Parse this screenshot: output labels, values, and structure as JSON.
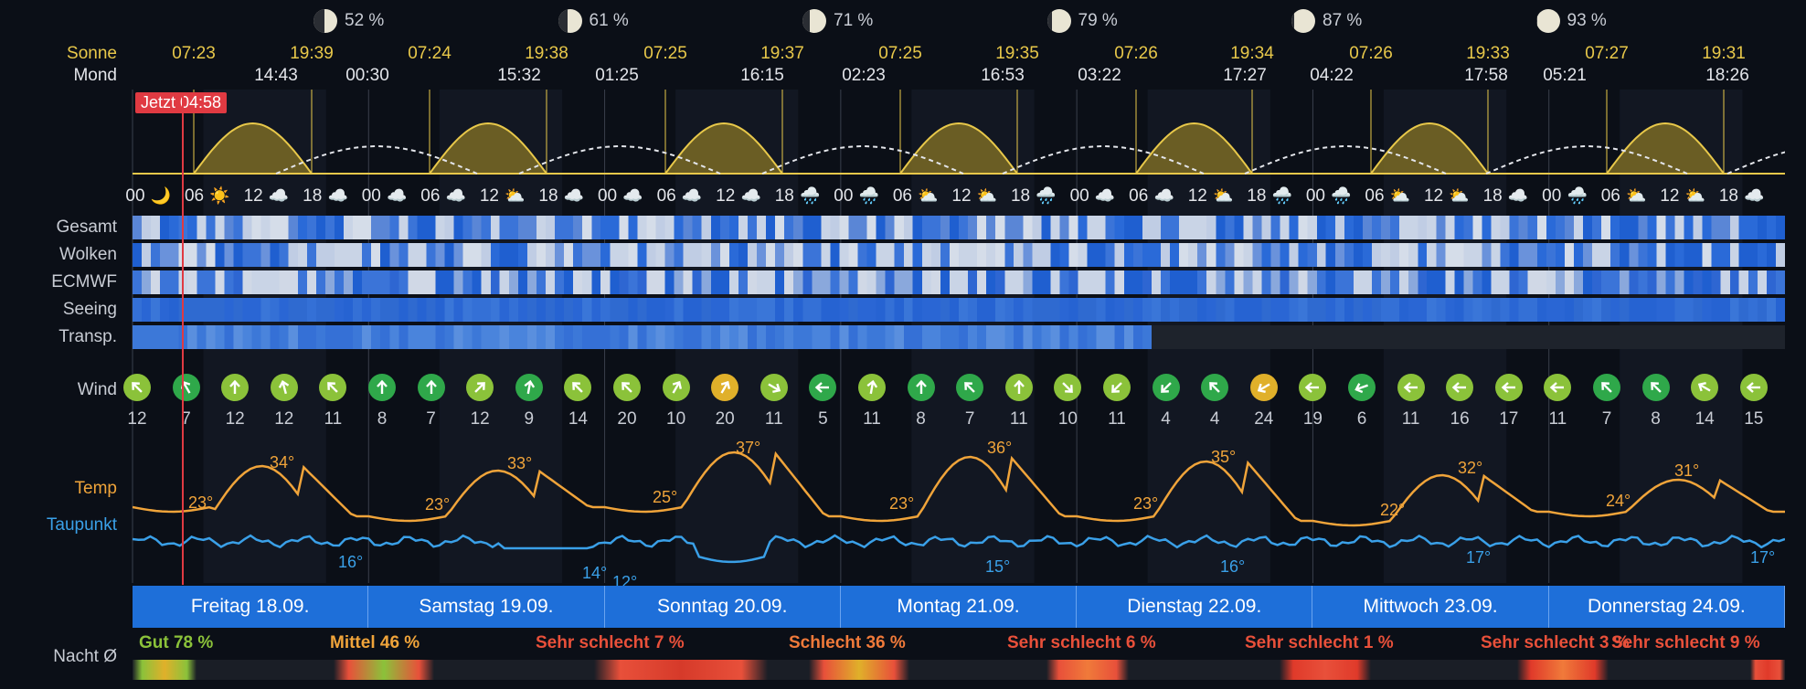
{
  "colors": {
    "sun": "#e8c84a",
    "moonline": "#e3e5ea",
    "temp": "#f0a43a",
    "dew": "#3aa0e8",
    "now": "#e03a42",
    "daybar": "#1e6fd9"
  },
  "moon_phases": [
    {
      "illum": "52 %",
      "shade": 0.48
    },
    {
      "illum": "61 %",
      "shade": 0.39
    },
    {
      "illum": "71 %",
      "shade": 0.29
    },
    {
      "illum": "79 %",
      "shade": 0.21
    },
    {
      "illum": "87 %",
      "shade": 0.13
    },
    {
      "illum": "93 %",
      "shade": 0.07
    }
  ],
  "labels": {
    "sonne": "Sonne",
    "mond": "Mond",
    "gesamt": "Gesamt",
    "wolken": "Wolken",
    "ecmwf": "ECMWF",
    "seeing": "Seeing",
    "transp": "Transp.",
    "wind": "Wind",
    "temp": "Temp",
    "taupunkt": "Taupunkt",
    "nacht": "Nacht Ø"
  },
  "now_label": "Jetzt 04:58",
  "sun_times": [
    "07:23",
    "19:39",
    "07:24",
    "19:38",
    "07:25",
    "19:37",
    "07:25",
    "19:35",
    "07:26",
    "19:34",
    "07:26",
    "19:33",
    "07:27",
    "19:31"
  ],
  "moon_times": [
    "14:43",
    "00:30",
    "15:32",
    "01:25",
    "16:15",
    "02:23",
    "16:53",
    "03:22",
    "17:27",
    "04:22",
    "17:58",
    "05:21",
    "18:26"
  ],
  "hours": [
    {
      "h": "00",
      "icon": "🌙"
    },
    {
      "h": "06",
      "icon": "☀️"
    },
    {
      "h": "12",
      "icon": "☁️"
    },
    {
      "h": "18",
      "icon": "☁️"
    },
    {
      "h": "00",
      "icon": "☁️"
    },
    {
      "h": "06",
      "icon": "☁️"
    },
    {
      "h": "12",
      "icon": "⛅"
    },
    {
      "h": "18",
      "icon": "☁️"
    },
    {
      "h": "00",
      "icon": "☁️"
    },
    {
      "h": "06",
      "icon": "☁️"
    },
    {
      "h": "12",
      "icon": "☁️"
    },
    {
      "h": "18",
      "icon": "🌧️"
    },
    {
      "h": "00",
      "icon": "🌧️"
    },
    {
      "h": "06",
      "icon": "⛅"
    },
    {
      "h": "12",
      "icon": "⛅"
    },
    {
      "h": "18",
      "icon": "🌧️"
    },
    {
      "h": "00",
      "icon": "☁️"
    },
    {
      "h": "06",
      "icon": "☁️"
    },
    {
      "h": "12",
      "icon": "⛅"
    },
    {
      "h": "18",
      "icon": "🌧️"
    },
    {
      "h": "00",
      "icon": "🌧️"
    },
    {
      "h": "06",
      "icon": "⛅"
    },
    {
      "h": "12",
      "icon": "⛅"
    },
    {
      "h": "18",
      "icon": "☁️"
    },
    {
      "h": "00",
      "icon": "🌧️"
    },
    {
      "h": "06",
      "icon": "⛅"
    },
    {
      "h": "12",
      "icon": "⛅"
    },
    {
      "h": "18",
      "icon": "☁️"
    }
  ],
  "wind": [
    {
      "s": "12",
      "dir": 315,
      "c": "#8bc23a"
    },
    {
      "s": "7",
      "dir": 330,
      "c": "#2fa84a"
    },
    {
      "s": "12",
      "dir": 0,
      "c": "#8bc23a"
    },
    {
      "s": "12",
      "dir": 345,
      "c": "#8bc23a"
    },
    {
      "s": "11",
      "dir": 315,
      "c": "#8bc23a"
    },
    {
      "s": "8",
      "dir": 0,
      "c": "#2fa84a"
    },
    {
      "s": "7",
      "dir": 0,
      "c": "#2fa84a"
    },
    {
      "s": "12",
      "dir": 45,
      "c": "#8bc23a"
    },
    {
      "s": "9",
      "dir": 10,
      "c": "#2fa84a"
    },
    {
      "s": "14",
      "dir": 315,
      "c": "#8bc23a"
    },
    {
      "s": "20",
      "dir": 315,
      "c": "#8bc23a"
    },
    {
      "s": "10",
      "dir": 30,
      "c": "#8bc23a"
    },
    {
      "s": "20",
      "dir": 30,
      "c": "#e0b02a"
    },
    {
      "s": "11",
      "dir": 120,
      "c": "#8bc23a"
    },
    {
      "s": "5",
      "dir": 270,
      "c": "#2fa84a"
    },
    {
      "s": "11",
      "dir": 10,
      "c": "#8bc23a"
    },
    {
      "s": "8",
      "dir": 0,
      "c": "#2fa84a"
    },
    {
      "s": "7",
      "dir": 315,
      "c": "#2fa84a"
    },
    {
      "s": "11",
      "dir": 0,
      "c": "#8bc23a"
    },
    {
      "s": "10",
      "dir": 135,
      "c": "#8bc23a"
    },
    {
      "s": "11",
      "dir": 225,
      "c": "#8bc23a"
    },
    {
      "s": "4",
      "dir": 225,
      "c": "#2fa84a"
    },
    {
      "s": "4",
      "dir": 315,
      "c": "#2fa84a"
    },
    {
      "s": "24",
      "dir": 240,
      "c": "#e0b02a"
    },
    {
      "s": "19",
      "dir": 270,
      "c": "#8bc23a"
    },
    {
      "s": "6",
      "dir": 250,
      "c": "#2fa84a"
    },
    {
      "s": "11",
      "dir": 270,
      "c": "#8bc23a"
    },
    {
      "s": "16",
      "dir": 270,
      "c": "#8bc23a"
    },
    {
      "s": "17",
      "dir": 270,
      "c": "#8bc23a"
    },
    {
      "s": "11",
      "dir": 270,
      "c": "#8bc23a"
    },
    {
      "s": "7",
      "dir": 315,
      "c": "#2fa84a"
    },
    {
      "s": "8",
      "dir": 315,
      "c": "#2fa84a"
    },
    {
      "s": "14",
      "dir": 300,
      "c": "#8bc23a"
    },
    {
      "s": "15",
      "dir": 270,
      "c": "#8bc23a"
    }
  ],
  "temp_labels": [
    {
      "t": "23°",
      "k": "temp"
    },
    {
      "t": "34°",
      "k": "temp"
    },
    {
      "t": "23°",
      "k": "temp"
    },
    {
      "t": "33°",
      "k": "temp"
    },
    {
      "t": "25°",
      "k": "temp"
    },
    {
      "t": "37°",
      "k": "temp"
    },
    {
      "t": "23°",
      "k": "temp"
    },
    {
      "t": "36°",
      "k": "temp"
    },
    {
      "t": "23°",
      "k": "temp"
    },
    {
      "t": "35°",
      "k": "temp"
    },
    {
      "t": "22°",
      "k": "temp"
    },
    {
      "t": "32°",
      "k": "temp"
    },
    {
      "t": "24°",
      "k": "temp"
    },
    {
      "t": "31°",
      "k": "temp"
    },
    {
      "t": "16°",
      "k": "dew"
    },
    {
      "t": "14°",
      "k": "dew"
    },
    {
      "t": "12°",
      "k": "dew"
    },
    {
      "t": "15°",
      "k": "dew"
    },
    {
      "t": "16°",
      "k": "dew"
    },
    {
      "t": "17°",
      "k": "dew"
    },
    {
      "t": "17°",
      "k": "dew"
    }
  ],
  "days": [
    "Freitag 18.09.",
    "Samstag 19.09.",
    "Sonntag 20.09.",
    "Montag 21.09.",
    "Dienstag 22.09.",
    "Mittwoch 23.09.",
    "Donnerstag 24.09."
  ],
  "nights": [
    {
      "text": "Gut 78 %",
      "color": "#8bc23a"
    },
    {
      "text": "Mittel 46 %",
      "color": "#f0a43a"
    },
    {
      "text": "Sehr schlecht 7 %",
      "color": "#e8503a"
    },
    {
      "text": "Schlecht 36 %",
      "color": "#f07a3a"
    },
    {
      "text": "Sehr schlecht 6 %",
      "color": "#e8503a"
    },
    {
      "text": "Sehr schlecht 1 %",
      "color": "#e8503a"
    },
    {
      "text": "Sehr schlecht 3 %",
      "color": "#e8503a"
    },
    {
      "text": "Sehr schlecht 9 %",
      "color": "#e8503a"
    }
  ]
}
